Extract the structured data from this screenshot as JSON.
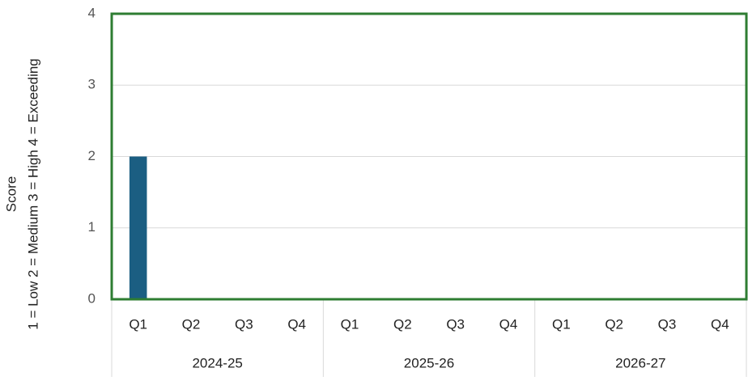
{
  "chart_data": {
    "type": "bar",
    "ylabel": [
      "Score",
      "1 = Low  2 = Medium  3 = High 4 = Exceeding"
    ],
    "groups": [
      "2024-25",
      "2025-26",
      "2026-27"
    ],
    "categories": [
      "Q1",
      "Q2",
      "Q3",
      "Q4",
      "Q1",
      "Q2",
      "Q3",
      "Q4",
      "Q1",
      "Q2",
      "Q3",
      "Q4"
    ],
    "values": [
      2,
      null,
      null,
      null,
      null,
      null,
      null,
      null,
      null,
      null,
      null,
      null
    ],
    "color": "#1b5e82",
    "ylim": [
      0,
      4
    ],
    "yticks": [
      0,
      1,
      2,
      3,
      4
    ],
    "grid": true,
    "frame_color": "#2e7d32"
  }
}
